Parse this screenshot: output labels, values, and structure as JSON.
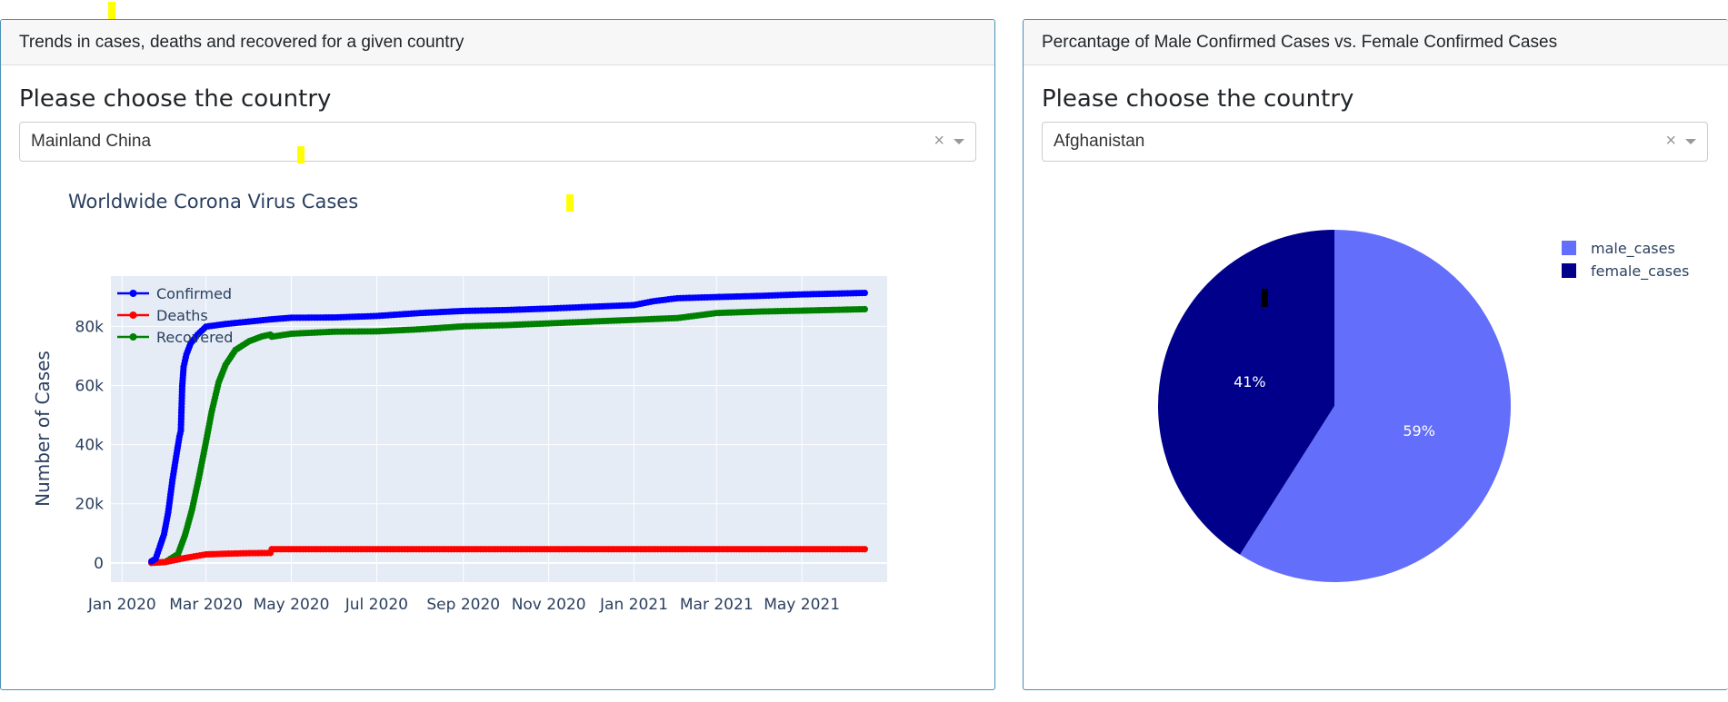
{
  "left_panel": {
    "header": "Trends in cases, deaths and recovered for a given country",
    "prompt": "Please choose the country",
    "select": {
      "value": "Mainland China",
      "clear": "×"
    },
    "chart_data": {
      "type": "line",
      "title": "Worldwide Corona Virus Cases",
      "xlabel": "",
      "ylabel": "Number of Cases",
      "x_ticks": [
        "Jan 2020",
        "Mar 2020",
        "May 2020",
        "Jul 2020",
        "Sep 2020",
        "Nov 2020",
        "Jan 2021",
        "Mar 2021",
        "May 2021"
      ],
      "y_ticks": [
        "0",
        "20k",
        "40k",
        "60k",
        "80k"
      ],
      "ylim": [
        -6500,
        97000
      ],
      "xlim": [
        "2019-12-24",
        "2021-07-01"
      ],
      "legend": "top-left",
      "grid": true,
      "series": [
        {
          "name": "Confirmed",
          "color": "#0000ff",
          "points": [
            [
              "2020-01-22",
              547
            ],
            [
              "2020-01-25",
              1400
            ],
            [
              "2020-01-28",
              5500
            ],
            [
              "2020-01-31",
              9700
            ],
            [
              "2020-02-03",
              17200
            ],
            [
              "2020-02-06",
              28000
            ],
            [
              "2020-02-09",
              37000
            ],
            [
              "2020-02-11",
              42700
            ],
            [
              "2020-02-12",
              44700
            ],
            [
              "2020-02-13",
              59800
            ],
            [
              "2020-02-14",
              66300
            ],
            [
              "2020-02-16",
              70500
            ],
            [
              "2020-02-19",
              74200
            ],
            [
              "2020-02-24",
              77200
            ],
            [
              "2020-03-01",
              79900
            ],
            [
              "2020-03-15",
              80800
            ],
            [
              "2020-04-15",
              82300
            ],
            [
              "2020-05-01",
              82900
            ],
            [
              "2020-06-01",
              83000
            ],
            [
              "2020-07-01",
              83500
            ],
            [
              "2020-08-01",
              84500
            ],
            [
              "2020-09-01",
              85200
            ],
            [
              "2020-10-01",
              85500
            ],
            [
              "2020-11-01",
              86000
            ],
            [
              "2020-12-01",
              86600
            ],
            [
              "2021-01-01",
              87200
            ],
            [
              "2021-01-15",
              88500
            ],
            [
              "2021-02-01",
              89500
            ],
            [
              "2021-03-01",
              89900
            ],
            [
              "2021-04-01",
              90300
            ],
            [
              "2021-05-01",
              90800
            ],
            [
              "2021-06-15",
              91300
            ]
          ]
        },
        {
          "name": "Deaths",
          "color": "#ff0000",
          "points": [
            [
              "2020-01-22",
              17
            ],
            [
              "2020-02-01",
              300
            ],
            [
              "2020-02-15",
              1650
            ],
            [
              "2020-03-01",
              2870
            ],
            [
              "2020-03-15",
              3100
            ],
            [
              "2020-04-01",
              3300
            ],
            [
              "2020-04-16",
              3340
            ],
            [
              "2020-04-17",
              4630
            ],
            [
              "2020-05-01",
              4640
            ],
            [
              "2021-06-15",
              4640
            ]
          ]
        },
        {
          "name": "Recovered",
          "color": "#008000",
          "points": [
            [
              "2020-01-22",
              28
            ],
            [
              "2020-02-01",
              300
            ],
            [
              "2020-02-10",
              3000
            ],
            [
              "2020-02-15",
              9400
            ],
            [
              "2020-02-20",
              18000
            ],
            [
              "2020-02-25",
              29000
            ],
            [
              "2020-03-01",
              41000
            ],
            [
              "2020-03-05",
              51000
            ],
            [
              "2020-03-10",
              61000
            ],
            [
              "2020-03-15",
              67000
            ],
            [
              "2020-03-22",
              72000
            ],
            [
              "2020-04-01",
              75000
            ],
            [
              "2020-04-10",
              76600
            ],
            [
              "2020-04-16",
              77200
            ],
            [
              "2020-04-17",
              76500
            ],
            [
              "2020-05-01",
              77500
            ],
            [
              "2020-06-01",
              78200
            ],
            [
              "2020-07-01",
              78300
            ],
            [
              "2020-08-01",
              79000
            ],
            [
              "2020-09-01",
              80000
            ],
            [
              "2020-10-01",
              80400
            ],
            [
              "2020-11-01",
              81000
            ],
            [
              "2020-12-01",
              81600
            ],
            [
              "2021-01-01",
              82200
            ],
            [
              "2021-02-01",
              82800
            ],
            [
              "2021-03-01",
              84500
            ],
            [
              "2021-04-01",
              85000
            ],
            [
              "2021-05-01",
              85300
            ],
            [
              "2021-06-15",
              85800
            ]
          ]
        }
      ]
    }
  },
  "right_panel": {
    "header": "Percantage of Male Confirmed Cases vs. Female Confirmed Cases",
    "prompt": "Please choose the country",
    "select": {
      "value": "Afghanistan",
      "clear": "×"
    },
    "chart_data": {
      "type": "pie",
      "legend": "top-right",
      "slices": [
        {
          "name": "male_cases",
          "value": 59,
          "label": "59%",
          "color": "#636efa"
        },
        {
          "name": "female_cases",
          "value": 41,
          "label": "41%",
          "color": "#00008b"
        }
      ]
    }
  }
}
